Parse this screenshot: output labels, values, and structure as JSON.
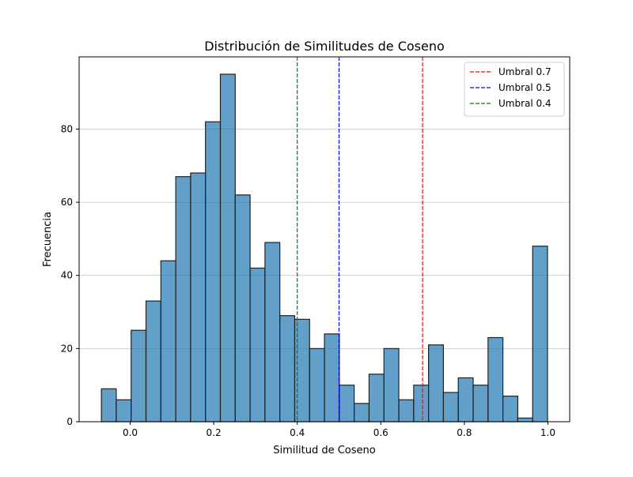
{
  "chart_data": {
    "type": "bar",
    "subtype": "histogram",
    "title": "Distribución de Similitudes de Coseno",
    "xlabel": "Similitud de Coseno",
    "ylabel": "Frecuencia",
    "xlim": [
      -0.1222,
      1.0522
    ],
    "ylim": [
      0,
      99.75
    ],
    "xticks": [
      0.0,
      0.2,
      0.4,
      0.6,
      0.8,
      1.0
    ],
    "xtick_labels": [
      "0.0",
      "0.2",
      "0.4",
      "0.6",
      "0.8",
      "1.0"
    ],
    "yticks": [
      0,
      20,
      40,
      60,
      80
    ],
    "ytick_labels": [
      "0",
      "20",
      "40",
      "60",
      "80"
    ],
    "grid": "horizontal",
    "legend_position": "top-right",
    "bar_color": "#1f77b4",
    "bar_edge_color": "#222222",
    "bin_width": 0.0356,
    "bins_left": [
      -0.0689,
      -0.0333,
      0.0023,
      0.0379,
      0.0735,
      0.1091,
      0.1447,
      0.1803,
      0.2159,
      0.2515,
      0.2871,
      0.3227,
      0.3583,
      0.3939,
      0.4295,
      0.4651,
      0.5007,
      0.5363,
      0.5719,
      0.6075,
      0.6431,
      0.6787,
      0.7143,
      0.7499,
      0.7855,
      0.8211,
      0.8567,
      0.8923,
      0.9279,
      0.9635
    ],
    "values": [
      9,
      6,
      25,
      33,
      44,
      67,
      68,
      82,
      95,
      62,
      42,
      49,
      29,
      28,
      20,
      24,
      10,
      5,
      13,
      20,
      6,
      10,
      21,
      8,
      12,
      10,
      23,
      7,
      1,
      48
    ],
    "thresholds": [
      {
        "label": "Umbral 0.7",
        "x": 0.7,
        "color": "#ff0000"
      },
      {
        "label": "Umbral 0.5",
        "x": 0.5,
        "color": "#0000ff"
      },
      {
        "label": "Umbral 0.4",
        "x": 0.4,
        "color": "#008000"
      }
    ]
  }
}
